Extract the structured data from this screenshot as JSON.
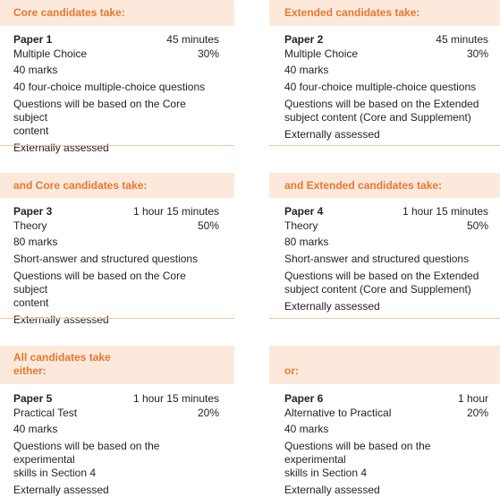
{
  "sections": [
    {
      "header": "Core candidates take:",
      "paper": "Paper 1",
      "duration": "45 minutes",
      "type": "Multiple Choice",
      "weight": "30%",
      "marks": "40 marks",
      "lines": [
        "40 four-choice multiple-choice questions",
        "Questions will be based on the Core subject",
        "content",
        "Externally assessed"
      ]
    },
    {
      "header": "Extended candidates take:",
      "paper": "Paper 2",
      "duration": "45 minutes",
      "type": "Multiple Choice",
      "weight": "30%",
      "marks": "40 marks",
      "lines": [
        "40 four-choice multiple-choice questions",
        "Questions will be based on the Extended",
        "subject content (Core and Supplement)",
        "Externally assessed"
      ]
    },
    {
      "header": "and Core candidates take:",
      "paper": "Paper 3",
      "duration": "1 hour 15 minutes",
      "type": "Theory",
      "weight": "50%",
      "marks": "80 marks",
      "lines": [
        "Short-answer and structured questions",
        "Questions will be based on the Core subject",
        "content",
        "Externally assessed"
      ]
    },
    {
      "header": "and Extended candidates take:",
      "paper": "Paper 4",
      "duration": "1 hour 15 minutes",
      "type": "Theory",
      "weight": "50%",
      "marks": "80 marks",
      "lines": [
        "Short-answer and structured questions",
        "Questions will be based on the Extended",
        "subject content (Core and Supplement)",
        "Externally assessed"
      ]
    },
    {
      "header_lines": [
        "All candidates take",
        "either:"
      ],
      "paper": "Paper 5",
      "duration": "1 hour 15 minutes",
      "type": "Practical Test",
      "weight": "20%",
      "marks": "40 marks",
      "lines": [
        "Questions will be based on the experimental",
        "skills in Section 4",
        "Externally assessed"
      ]
    },
    {
      "header": "or:",
      "paper": "Paper 6",
      "duration": "1 hour",
      "type": "Alternative to Practical",
      "weight": "20%",
      "marks": "40 marks",
      "lines": [
        "Questions will be based on the experimental",
        "skills in Section 4",
        "Externally assessed"
      ]
    }
  ],
  "colors": {
    "header_bg": "#fce9dc",
    "header_text": "#e8772e",
    "rule": "#f3c4a4"
  }
}
